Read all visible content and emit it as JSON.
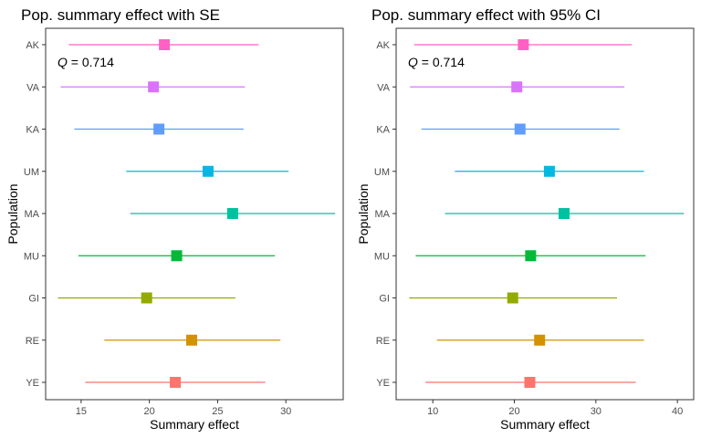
{
  "chart_data": [
    {
      "type": "forest",
      "title": "Pop. summary effect with SE",
      "xlabel": "Summary effect",
      "ylabel": "Population",
      "xlim": [
        12.4,
        34.2
      ],
      "xticks": [
        15,
        20,
        25,
        30
      ],
      "xtick_labels": [
        "15",
        "20",
        "25",
        "30"
      ],
      "grid": false,
      "annotation": {
        "italic": "Q",
        "text": " = 0.714"
      },
      "categories": [
        "AK",
        "VA",
        "KA",
        "UM",
        "MA",
        "MU",
        "GI",
        "RE",
        "YE"
      ],
      "estimates": [
        21.1,
        20.3,
        20.7,
        24.3,
        26.1,
        22.0,
        19.8,
        23.1,
        21.9
      ],
      "lower": [
        14.1,
        13.5,
        14.5,
        18.3,
        18.6,
        14.8,
        13.3,
        16.7,
        15.3
      ],
      "upper": [
        28.0,
        27.0,
        26.9,
        30.2,
        33.6,
        29.2,
        26.3,
        29.6,
        28.5
      ],
      "colors": [
        "#FF61C3",
        "#DB72FB",
        "#619CFF",
        "#00B9E3",
        "#00C19F",
        "#00BA38",
        "#93AA00",
        "#D39200",
        "#F8766D"
      ]
    },
    {
      "type": "forest",
      "title": "Pop. summary effect with 95% CI",
      "xlabel": "Summary effect",
      "ylabel": "Population",
      "xlim": [
        5.5,
        42.0
      ],
      "xticks": [
        10,
        20,
        30,
        40
      ],
      "xtick_labels": [
        "10",
        "20",
        "30",
        "40"
      ],
      "grid": false,
      "annotation": {
        "italic": "Q",
        "text": " = 0.714"
      },
      "categories": [
        "AK",
        "VA",
        "KA",
        "UM",
        "MA",
        "MU",
        "GI",
        "RE",
        "YE"
      ],
      "estimates": [
        21.1,
        20.3,
        20.7,
        24.3,
        26.1,
        22.0,
        19.8,
        23.1,
        21.9
      ],
      "lower": [
        7.7,
        7.2,
        8.6,
        12.7,
        11.5,
        7.9,
        7.1,
        10.5,
        9.1
      ],
      "upper": [
        34.4,
        33.5,
        32.9,
        35.9,
        40.8,
        36.1,
        32.6,
        35.9,
        34.9
      ],
      "colors": [
        "#FF61C3",
        "#DB72FB",
        "#619CFF",
        "#00B9E3",
        "#00C19F",
        "#00BA38",
        "#93AA00",
        "#D39200",
        "#F8766D"
      ]
    }
  ]
}
